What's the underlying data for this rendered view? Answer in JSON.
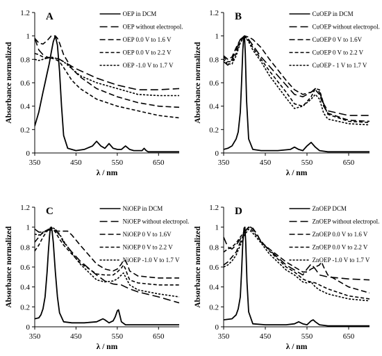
{
  "chart_data": [
    {
      "type": "line",
      "panel": "A",
      "xlabel": "λ / nm",
      "ylabel": "Absorbance normalized",
      "xlim": [
        350,
        700
      ],
      "ylim": [
        0,
        1.2
      ],
      "xticks": [
        350,
        450,
        550,
        650
      ],
      "yticks": [
        0,
        0.2,
        0.4,
        0.6,
        0.8,
        1,
        1.2
      ],
      "legend_position": "top-right",
      "series": [
        {
          "name": "OEP in DCM",
          "style": "solid",
          "x": [
            350,
            360,
            370,
            375,
            380,
            385,
            390,
            395,
            400,
            405,
            410,
            415,
            420,
            430,
            450,
            470,
            490,
            500,
            510,
            520,
            530,
            540,
            550,
            560,
            570,
            580,
            590,
            600,
            610,
            615,
            620,
            625,
            630,
            650,
            700
          ],
          "y": [
            0.23,
            0.35,
            0.52,
            0.6,
            0.68,
            0.76,
            0.86,
            0.95,
            1.0,
            0.92,
            0.7,
            0.4,
            0.15,
            0.04,
            0.02,
            0.03,
            0.06,
            0.1,
            0.06,
            0.04,
            0.08,
            0.04,
            0.03,
            0.03,
            0.06,
            0.03,
            0.02,
            0.02,
            0.02,
            0.04,
            0.02,
            0.01,
            0.01,
            0.01,
            0.01
          ]
        },
        {
          "name": "OEP without electropol.",
          "style": "longdash",
          "x": [
            350,
            360,
            370,
            380,
            390,
            400,
            410,
            420,
            450,
            500,
            550,
            600,
            650,
            700
          ],
          "y": [
            0.98,
            0.88,
            0.84,
            0.82,
            0.81,
            0.81,
            0.8,
            0.78,
            0.72,
            0.64,
            0.58,
            0.54,
            0.54,
            0.55
          ]
        },
        {
          "name": "OEP 0.0 V to 1.6 V",
          "style": "dash",
          "x": [
            350,
            360,
            370,
            380,
            390,
            400,
            405,
            410,
            420,
            440,
            460,
            500,
            550,
            600,
            650,
            700
          ],
          "y": [
            0.98,
            0.94,
            0.93,
            0.96,
            1.0,
            1.0,
            0.98,
            0.94,
            0.84,
            0.72,
            0.65,
            0.55,
            0.48,
            0.43,
            0.4,
            0.39
          ]
        },
        {
          "name": "OEP 0.0 V to 2.2 V",
          "style": "shortdash",
          "x": [
            350,
            360,
            370,
            380,
            390,
            400,
            410,
            420,
            440,
            460,
            500,
            550,
            600,
            650,
            700
          ],
          "y": [
            0.85,
            0.84,
            0.82,
            0.81,
            0.81,
            0.8,
            0.78,
            0.73,
            0.62,
            0.55,
            0.46,
            0.4,
            0.36,
            0.32,
            0.3
          ]
        },
        {
          "name": "OEP -1.0 V to 1.7 V",
          "style": "dot",
          "x": [
            350,
            360,
            370,
            380,
            390,
            400,
            410,
            420,
            440,
            460,
            500,
            550,
            600,
            650,
            700
          ],
          "y": [
            0.8,
            0.79,
            0.8,
            0.81,
            0.82,
            0.81,
            0.8,
            0.78,
            0.72,
            0.66,
            0.6,
            0.55,
            0.5,
            0.49,
            0.49
          ]
        }
      ]
    },
    {
      "type": "line",
      "panel": "B",
      "xlabel": "λ / nm",
      "ylabel": "Absorbance normalized",
      "xlim": [
        350,
        700
      ],
      "ylim": [
        0,
        1.2
      ],
      "xticks": [
        350,
        450,
        550,
        650
      ],
      "yticks": [
        0,
        0.2,
        0.4,
        0.6,
        0.8,
        1,
        1.2
      ],
      "legend_position": "top-right",
      "series": [
        {
          "name": "CuOEP in DCM",
          "style": "solid",
          "x": [
            350,
            360,
            370,
            380,
            385,
            390,
            393,
            396,
            398,
            400,
            402,
            405,
            410,
            420,
            440,
            480,
            510,
            520,
            530,
            540,
            550,
            560,
            570,
            580,
            600,
            650,
            700
          ],
          "y": [
            0.03,
            0.04,
            0.06,
            0.12,
            0.18,
            0.35,
            0.6,
            0.88,
            0.98,
            1.0,
            0.85,
            0.45,
            0.12,
            0.03,
            0.02,
            0.02,
            0.03,
            0.05,
            0.03,
            0.02,
            0.06,
            0.09,
            0.05,
            0.02,
            0.01,
            0.01,
            0.01
          ]
        },
        {
          "name": "CuOEP without electropol.",
          "style": "longdash",
          "x": [
            350,
            360,
            370,
            380,
            390,
            400,
            410,
            420,
            440,
            460,
            500,
            520,
            540,
            560,
            570,
            580,
            590,
            600,
            650,
            700
          ],
          "y": [
            0.78,
            0.75,
            0.8,
            0.88,
            0.97,
            1.0,
            0.97,
            0.92,
            0.82,
            0.74,
            0.58,
            0.5,
            0.48,
            0.52,
            0.55,
            0.52,
            0.42,
            0.36,
            0.32,
            0.32
          ]
        },
        {
          "name": "CuOEP 0 V to 1.6V",
          "style": "dash",
          "x": [
            350,
            360,
            370,
            380,
            390,
            400,
            410,
            420,
            440,
            460,
            500,
            520,
            540,
            560,
            570,
            580,
            590,
            600,
            650,
            700
          ],
          "y": [
            0.83,
            0.8,
            0.82,
            0.9,
            0.97,
            1.0,
            0.99,
            0.97,
            0.9,
            0.8,
            0.62,
            0.54,
            0.5,
            0.52,
            0.54,
            0.5,
            0.4,
            0.34,
            0.28,
            0.27
          ]
        },
        {
          "name": "CuOEP 0 V to 2.2 V",
          "style": "shortdash",
          "x": [
            350,
            360,
            370,
            380,
            390,
            400,
            410,
            420,
            440,
            460,
            500,
            520,
            540,
            560,
            570,
            580,
            590,
            600,
            650,
            700
          ],
          "y": [
            0.82,
            0.78,
            0.78,
            0.85,
            0.95,
            1.0,
            0.96,
            0.9,
            0.8,
            0.7,
            0.52,
            0.42,
            0.4,
            0.48,
            0.55,
            0.54,
            0.42,
            0.33,
            0.27,
            0.26
          ]
        },
        {
          "name": "CuOEP - 1 V to 1.7 V",
          "style": "dot",
          "x": [
            350,
            360,
            370,
            380,
            390,
            400,
            410,
            420,
            440,
            460,
            500,
            520,
            540,
            560,
            570,
            580,
            590,
            600,
            650,
            700
          ],
          "y": [
            0.8,
            0.76,
            0.76,
            0.83,
            0.94,
            1.0,
            0.95,
            0.88,
            0.78,
            0.66,
            0.47,
            0.38,
            0.4,
            0.46,
            0.5,
            0.46,
            0.34,
            0.29,
            0.25,
            0.24
          ]
        }
      ]
    },
    {
      "type": "line",
      "panel": "C",
      "xlabel": "λ / nm",
      "ylabel": "Absorbance normalized",
      "xlim": [
        350,
        700
      ],
      "ylim": [
        0,
        1.2
      ],
      "xticks": [
        350,
        450,
        550,
        650
      ],
      "yticks": [
        0,
        0.2,
        0.4,
        0.6,
        0.8,
        1,
        1.2
      ],
      "legend_position": "top-right",
      "series": [
        {
          "name": "NiOEP in DCM",
          "style": "solid",
          "x": [
            350,
            360,
            365,
            370,
            375,
            380,
            383,
            386,
            388,
            390,
            392,
            395,
            400,
            405,
            410,
            420,
            440,
            470,
            500,
            510,
            515,
            520,
            530,
            540,
            545,
            550,
            553,
            556,
            560,
            570,
            600,
            650,
            700
          ],
          "y": [
            0.08,
            0.09,
            0.12,
            0.18,
            0.3,
            0.55,
            0.75,
            0.92,
            0.99,
            1.0,
            0.96,
            0.85,
            0.55,
            0.3,
            0.14,
            0.05,
            0.04,
            0.04,
            0.05,
            0.07,
            0.08,
            0.07,
            0.04,
            0.06,
            0.1,
            0.16,
            0.17,
            0.12,
            0.05,
            0.02,
            0.02,
            0.02,
            0.02
          ]
        },
        {
          "name": "NiOEP without electropol.",
          "style": "longdash",
          "x": [
            350,
            360,
            370,
            380,
            390,
            400,
            410,
            420,
            440,
            460,
            500,
            520,
            540,
            560,
            570,
            580,
            600,
            650,
            700
          ],
          "y": [
            0.98,
            0.95,
            0.95,
            0.97,
            0.99,
            0.97,
            0.92,
            0.85,
            0.75,
            0.66,
            0.52,
            0.46,
            0.43,
            0.42,
            0.4,
            0.38,
            0.35,
            0.3,
            0.24
          ]
        },
        {
          "name": "NiOEP 0 V to 1.6V",
          "style": "dash",
          "x": [
            350,
            360,
            370,
            380,
            390,
            400,
            410,
            420,
            430,
            440,
            460,
            500,
            520,
            540,
            550,
            560,
            565,
            570,
            575,
            580,
            600,
            650,
            700
          ],
          "y": [
            0.85,
            0.9,
            0.95,
            0.97,
            0.97,
            0.96,
            0.96,
            0.96,
            0.96,
            0.92,
            0.82,
            0.63,
            0.58,
            0.56,
            0.58,
            0.63,
            0.67,
            0.66,
            0.62,
            0.56,
            0.51,
            0.49,
            0.49
          ]
        },
        {
          "name": "NiOEP 0 V to 2.2 V",
          "style": "shortdash",
          "x": [
            350,
            360,
            370,
            380,
            390,
            400,
            410,
            420,
            440,
            460,
            500,
            520,
            540,
            550,
            560,
            565,
            570,
            575,
            580,
            600,
            650,
            700
          ],
          "y": [
            0.76,
            0.82,
            0.9,
            0.96,
            1.0,
            0.95,
            0.88,
            0.82,
            0.73,
            0.64,
            0.53,
            0.52,
            0.52,
            0.55,
            0.59,
            0.62,
            0.58,
            0.52,
            0.47,
            0.44,
            0.42,
            0.42
          ]
        },
        {
          "name": "NiOEP -1.0 V to 1.7 V",
          "style": "dot",
          "x": [
            350,
            360,
            370,
            380,
            390,
            400,
            410,
            420,
            440,
            460,
            500,
            520,
            540,
            550,
            560,
            565,
            570,
            580,
            600,
            650,
            700
          ],
          "y": [
            0.93,
            0.92,
            0.94,
            0.97,
            1.0,
            0.98,
            0.93,
            0.86,
            0.74,
            0.63,
            0.47,
            0.45,
            0.46,
            0.48,
            0.52,
            0.54,
            0.5,
            0.42,
            0.37,
            0.33,
            0.3
          ]
        }
      ]
    },
    {
      "type": "line",
      "panel": "D",
      "xlabel": "λ / nm",
      "ylabel": "Absorbance normalized",
      "xlim": [
        350,
        700
      ],
      "ylim": [
        0,
        1.2
      ],
      "xticks": [
        350,
        450,
        550,
        650
      ],
      "yticks": [
        0,
        0.2,
        0.4,
        0.6,
        0.8,
        1,
        1.2
      ],
      "legend_position": "top-right",
      "series": [
        {
          "name": "ZnOEP DCM",
          "style": "solid",
          "x": [
            350,
            370,
            380,
            385,
            390,
            393,
            396,
            399,
            401,
            403,
            406,
            410,
            420,
            450,
            500,
            520,
            530,
            540,
            550,
            560,
            565,
            570,
            580,
            600,
            650,
            700
          ],
          "y": [
            0.07,
            0.08,
            0.12,
            0.18,
            0.3,
            0.55,
            0.85,
            0.99,
            1.0,
            0.85,
            0.45,
            0.15,
            0.03,
            0.02,
            0.02,
            0.03,
            0.05,
            0.03,
            0.02,
            0.06,
            0.07,
            0.05,
            0.02,
            0.01,
            0.01,
            0.01
          ]
        },
        {
          "name": "ZnOEP without electropol.",
          "style": "longdash",
          "x": [
            350,
            360,
            370,
            380,
            390,
            400,
            410,
            415,
            420,
            430,
            440,
            460,
            500,
            520,
            540,
            550,
            560,
            570,
            580,
            600,
            650,
            700
          ],
          "y": [
            0.9,
            0.8,
            0.78,
            0.82,
            0.88,
            0.95,
            1.0,
            1.0,
            0.98,
            0.93,
            0.85,
            0.77,
            0.62,
            0.57,
            0.52,
            0.58,
            0.63,
            0.58,
            0.52,
            0.5,
            0.48,
            0.47
          ]
        },
        {
          "name": "ZnOEP 0.0 V to 1.6 V",
          "style": "dash",
          "x": [
            350,
            360,
            370,
            380,
            390,
            400,
            410,
            420,
            430,
            440,
            460,
            500,
            520,
            540,
            550,
            560,
            570,
            580,
            585,
            590,
            600,
            650,
            700
          ],
          "y": [
            0.62,
            0.65,
            0.7,
            0.75,
            0.85,
            0.95,
            1.0,
            0.99,
            0.93,
            0.85,
            0.78,
            0.65,
            0.6,
            0.55,
            0.55,
            0.58,
            0.6,
            0.62,
            0.65,
            0.6,
            0.52,
            0.4,
            0.34
          ]
        },
        {
          "name": "ZnOEP 0.0 V to 2.2 V",
          "style": "shortdash",
          "x": [
            350,
            360,
            370,
            380,
            390,
            400,
            410,
            420,
            440,
            460,
            500,
            520,
            540,
            550,
            560,
            570,
            580,
            600,
            650,
            700
          ],
          "y": [
            0.75,
            0.78,
            0.8,
            0.84,
            0.9,
            0.96,
            1.0,
            0.96,
            0.86,
            0.76,
            0.6,
            0.55,
            0.48,
            0.46,
            0.45,
            0.44,
            0.42,
            0.38,
            0.31,
            0.28
          ]
        },
        {
          "name": "ZnOEP -1.0 V to 1.7 V",
          "style": "dot",
          "x": [
            350,
            360,
            370,
            380,
            390,
            400,
            410,
            420,
            440,
            460,
            500,
            520,
            540,
            550,
            560,
            570,
            580,
            600,
            650,
            700
          ],
          "y": [
            0.6,
            0.62,
            0.66,
            0.72,
            0.82,
            0.92,
            0.98,
            0.94,
            0.84,
            0.73,
            0.57,
            0.52,
            0.45,
            0.44,
            0.45,
            0.4,
            0.37,
            0.33,
            0.28,
            0.26
          ]
        }
      ]
    }
  ]
}
